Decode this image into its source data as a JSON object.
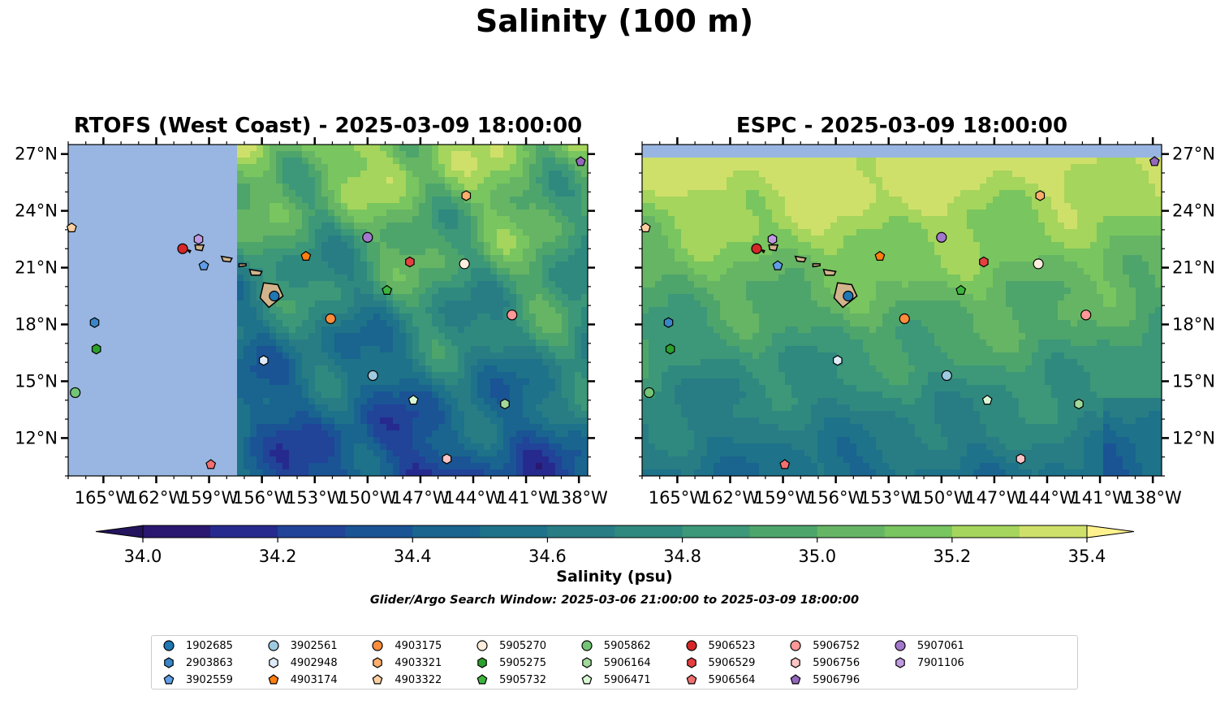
{
  "figure": {
    "suptitle": "Salinity (100 m)",
    "colorbar_label": "Salinity (psu)",
    "search_window": "Glider/Argo Search Window: 2025-03-06 21:00:00 to 2025-03-09 18:00:00"
  },
  "chart_data": {
    "type": "heatmap",
    "panels": [
      {
        "title": "RTOFS (West Coast) - 2025-03-09 18:00:00",
        "model": "RTOFS (West Coast)",
        "time": "2025-03-09 18:00:00",
        "valid_lon_start": -157.5
      },
      {
        "title": "ESPC - 2025-03-09 18:00:00",
        "model": "ESPC",
        "time": "2025-03-09 18:00:00"
      }
    ],
    "xlim": [
      -167,
      -137.5
    ],
    "ylim": [
      10,
      27.5
    ],
    "xticks": [
      -165,
      -162,
      -159,
      -156,
      -153,
      -150,
      -147,
      -144,
      -141,
      -138
    ],
    "xticklabels": [
      "165°W",
      "162°W",
      "159°W",
      "156°W",
      "153°W",
      "150°W",
      "147°W",
      "144°W",
      "141°W",
      "138°W"
    ],
    "yticks": [
      12,
      15,
      18,
      21,
      24,
      27
    ],
    "yticklabels": [
      "12°N",
      "15°N",
      "18°N",
      "21°N",
      "24°N",
      "27°N"
    ],
    "colorbar": {
      "levels": [
        34.0,
        34.1,
        34.2,
        34.3,
        34.4,
        34.5,
        34.6,
        34.7,
        34.8,
        34.9,
        35.0,
        35.1,
        35.2,
        35.3,
        35.4
      ],
      "ticks": [
        34.0,
        34.2,
        34.4,
        34.6,
        34.8,
        35.0,
        35.2,
        35.4
      ],
      "ticklabels": [
        "34.0",
        "34.2",
        "34.4",
        "34.6",
        "34.8",
        "35.0",
        "35.2",
        "35.4"
      ],
      "colors": [
        "#2b1871",
        "#262a8e",
        "#214398",
        "#1a5495",
        "#19658f",
        "#1e7289",
        "#287d85",
        "#30897f",
        "#3c9878",
        "#4ea56b",
        "#66b565",
        "#79c55f",
        "#a5d55c",
        "#cfe06a"
      ],
      "under_color": "#24145e",
      "over_color": "#fff28e",
      "extend": "both"
    },
    "land_color": "#d2b48c",
    "nodata_color": "#98b6e1",
    "floats": [
      {
        "id": "1902685",
        "lon": -155.3,
        "lat": 19.5,
        "marker": "circle",
        "color": "#1f77b4"
      },
      {
        "id": "2903863",
        "lon": -165.5,
        "lat": 18.1,
        "marker": "hexagon",
        "color": "#3a86c8"
      },
      {
        "id": "3902559",
        "lon": -159.3,
        "lat": 21.1,
        "marker": "pentagon",
        "color": "#5f9ee6"
      },
      {
        "id": "3902561",
        "lon": -149.7,
        "lat": 15.3,
        "marker": "circle",
        "color": "#9ecae1"
      },
      {
        "id": "4902948",
        "lon": -155.9,
        "lat": 16.1,
        "marker": "hexagon",
        "color": "#deebf7"
      },
      {
        "id": "4903174",
        "lon": -153.5,
        "lat": 21.6,
        "marker": "pentagon",
        "color": "#ff7f0e"
      },
      {
        "id": "4903175",
        "lon": -152.1,
        "lat": 18.3,
        "marker": "circle",
        "color": "#fd8d3c"
      },
      {
        "id": "4903321",
        "lon": -144.4,
        "lat": 24.8,
        "marker": "hexagon",
        "color": "#fdae6b"
      },
      {
        "id": "4903322",
        "lon": -166.8,
        "lat": 23.1,
        "marker": "pentagon",
        "color": "#fdd0a2"
      },
      {
        "id": "5905270",
        "lon": -144.5,
        "lat": 21.2,
        "marker": "circle",
        "color": "#feeedd"
      },
      {
        "id": "5905275",
        "lon": -165.4,
        "lat": 16.7,
        "marker": "hexagon",
        "color": "#2ca02c"
      },
      {
        "id": "5905732",
        "lon": -148.9,
        "lat": 19.8,
        "marker": "pentagon",
        "color": "#3db53d"
      },
      {
        "id": "5905862",
        "lon": -166.6,
        "lat": 14.4,
        "marker": "circle",
        "color": "#74c476"
      },
      {
        "id": "5906164",
        "lon": -142.2,
        "lat": 13.8,
        "marker": "hexagon",
        "color": "#a1d99b"
      },
      {
        "id": "5906471",
        "lon": -147.4,
        "lat": 14.0,
        "marker": "pentagon",
        "color": "#d9f7d5"
      },
      {
        "id": "5906523",
        "lon": -160.5,
        "lat": 22.0,
        "marker": "circle",
        "color": "#d62728"
      },
      {
        "id": "5906529",
        "lon": -147.6,
        "lat": 21.3,
        "marker": "hexagon",
        "color": "#e5403f"
      },
      {
        "id": "5906564",
        "lon": -158.9,
        "lat": 10.6,
        "marker": "pentagon",
        "color": "#f27070"
      },
      {
        "id": "5906752",
        "lon": -141.8,
        "lat": 18.5,
        "marker": "circle",
        "color": "#ff9896"
      },
      {
        "id": "5906756",
        "lon": -145.5,
        "lat": 10.9,
        "marker": "hexagon",
        "color": "#fcc4c4"
      },
      {
        "id": "5906796",
        "lon": -137.9,
        "lat": 26.6,
        "marker": "pentagon",
        "color": "#9467bd"
      },
      {
        "id": "5907061",
        "lon": -150.0,
        "lat": 22.6,
        "marker": "circle",
        "color": "#a278cc"
      },
      {
        "id": "7901106",
        "lon": -159.6,
        "lat": 22.5,
        "marker": "hexagon",
        "color": "#c09be3"
      }
    ]
  }
}
